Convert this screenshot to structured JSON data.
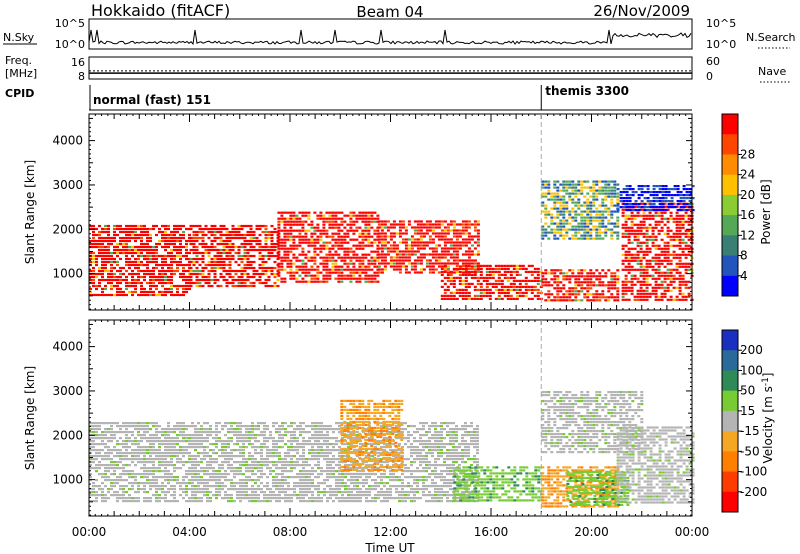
{
  "header": {
    "station": "Hokkaido (fitACF)",
    "beam": "Beam 04",
    "date": "26/Nov/2009"
  },
  "colors": {
    "power": [
      "#0000ff",
      "#2255bb",
      "#3a7f74",
      "#55a855",
      "#8ccc33",
      "#ffc000",
      "#ff8c00",
      "#ff4500",
      "#ff0000"
    ],
    "velocity": [
      "#1a2fbf",
      "#2a6a9a",
      "#2e8b57",
      "#77cc33",
      "#b4b4b4",
      "#f5a623",
      "#ff7f00",
      "#ff3c00",
      "#ff0000"
    ]
  },
  "chart_data": [
    {
      "type": "line",
      "panel": "nsky-nsearch",
      "left_label": "N.Sky",
      "right_label": "N.Search",
      "left_ticks": [
        "10^5",
        "10^0"
      ],
      "right_ticks": [
        "10^5",
        "10^0"
      ]
    },
    {
      "type": "line",
      "panel": "freq-nave",
      "left_label_line1": "Freq.",
      "left_label_line2": "[MHz]",
      "right_label": "Nave",
      "left_ticks": [
        "16",
        "8"
      ],
      "right_ticks": [
        "60",
        "0"
      ],
      "freq_mhz": 10.5,
      "nave": 22
    },
    {
      "type": "table",
      "panel": "cpid",
      "label": "CPID",
      "segments": [
        {
          "start_hour": 0,
          "end_hour": 18,
          "name": "normal (fast) 151"
        },
        {
          "start_hour": 18,
          "end_hour": 24,
          "name": "themis 3300"
        }
      ]
    },
    {
      "type": "heatmap",
      "panel": "power",
      "ylabel": "Slant Range [km]",
      "ylim": [
        180,
        4600
      ],
      "y_ticks": [
        1000,
        2000,
        3000,
        4000
      ],
      "xlim": [
        0,
        24
      ],
      "colorbar_label": "Power [dB]",
      "colorbar_ticks": [
        "4",
        "8",
        "12",
        "16",
        "20",
        "24",
        "28"
      ],
      "patches": [
        {
          "t0": 0.0,
          "t1": 4.0,
          "r0": 500,
          "r1": 2100,
          "value": "red"
        },
        {
          "t0": 4.0,
          "t1": 7.5,
          "r0": 700,
          "r1": 2100,
          "value": "red"
        },
        {
          "t0": 7.5,
          "t1": 11.5,
          "r0": 800,
          "r1": 2400,
          "value": "red"
        },
        {
          "t0": 11.5,
          "t1": 15.5,
          "r0": 1000,
          "r1": 2200,
          "value": "red"
        },
        {
          "t0": 14.0,
          "t1": 18.0,
          "r0": 400,
          "r1": 1200,
          "value": "red"
        },
        {
          "t0": 18.0,
          "t1": 21.0,
          "r0": 400,
          "r1": 1100,
          "value": "red"
        },
        {
          "t0": 18.0,
          "t1": 21.0,
          "r0": 1800,
          "r1": 3100,
          "value": "mixed"
        },
        {
          "t0": 21.2,
          "t1": 24.0,
          "r0": 400,
          "r1": 2600,
          "value": "red"
        },
        {
          "t0": 21.0,
          "t1": 24.0,
          "r0": 2400,
          "r1": 3000,
          "value": "blue"
        }
      ]
    },
    {
      "type": "heatmap",
      "panel": "velocity",
      "xlabel": "Time UT",
      "ylabel": "Slant Range [km]",
      "ylim": [
        180,
        4600
      ],
      "y_ticks": [
        1000,
        2000,
        3000,
        4000
      ],
      "xlim": [
        0,
        24
      ],
      "x_tick_labels": [
        "00:00",
        "04:00",
        "08:00",
        "12:00",
        "16:00",
        "20:00",
        "00:00"
      ],
      "colorbar_label": "Velocity [m s",
      "colorbar_label_sup": "-1",
      "colorbar_label_end": "]",
      "colorbar_ticks": [
        "200",
        "100",
        "50",
        "15",
        "-15",
        "-50",
        "-100",
        "-200"
      ],
      "patches": [
        {
          "t0": 0.0,
          "t1": 15.5,
          "r0": 500,
          "r1": 2300,
          "value": "grey"
        },
        {
          "t0": 10.0,
          "t1": 12.5,
          "r0": 1200,
          "r1": 2800,
          "value": "orange"
        },
        {
          "t0": 14.5,
          "t1": 18.0,
          "r0": 500,
          "r1": 1300,
          "value": "green"
        },
        {
          "t0": 18.0,
          "t1": 21.0,
          "r0": 400,
          "r1": 1300,
          "value": "orange"
        },
        {
          "t0": 19.0,
          "t1": 21.5,
          "r0": 400,
          "r1": 1200,
          "value": "green"
        },
        {
          "t0": 18.0,
          "t1": 22.0,
          "r0": 1600,
          "r1": 3000,
          "value": "grey"
        },
        {
          "t0": 21.0,
          "t1": 24.0,
          "r0": 500,
          "r1": 2200,
          "value": "grey"
        }
      ]
    }
  ]
}
